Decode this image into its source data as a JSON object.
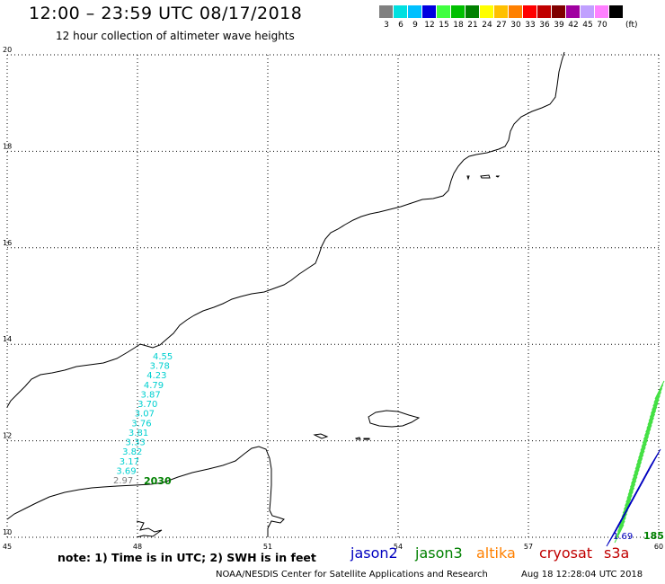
{
  "header": {
    "title": "12:00 – 23:59 UTC 08/17/2018",
    "subtitle": "12 hour collection of altimeter wave heights"
  },
  "colorbar": {
    "unit": "(ft)",
    "bins": [
      {
        "label": "3",
        "color": "#808080"
      },
      {
        "label": "6",
        "color": "#00e0e0"
      },
      {
        "label": "9",
        "color": "#00c0ff"
      },
      {
        "label": "12",
        "color": "#0000e0"
      },
      {
        "label": "15",
        "color": "#40ff40"
      },
      {
        "label": "18",
        "color": "#00c000"
      },
      {
        "label": "21",
        "color": "#008000"
      },
      {
        "label": "24",
        "color": "#ffff00"
      },
      {
        "label": "27",
        "color": "#ffc000"
      },
      {
        "label": "30",
        "color": "#ff8000"
      },
      {
        "label": "33",
        "color": "#ff0000"
      },
      {
        "label": "36",
        "color": "#c00000"
      },
      {
        "label": "39",
        "color": "#800000"
      },
      {
        "label": "42",
        "color": "#a000a0"
      },
      {
        "label": "45",
        "color": "#c0a0ff"
      },
      {
        "label": "70",
        "color": "#ff80ff"
      },
      {
        "label": "",
        "color": "#000000"
      }
    ]
  },
  "axes": {
    "lon_ticks": [
      "45",
      "48",
      "51",
      "54",
      "57",
      "60"
    ],
    "lat_ticks": [
      "20",
      "18",
      "16",
      "14",
      "12",
      "10"
    ]
  },
  "tracks": {
    "cyan_track": {
      "values": [
        "4.55",
        "3.78",
        "4.23",
        "4.79",
        "3.87",
        "3.70",
        "3.07",
        "3.76",
        "3.81",
        "3.33",
        "3.82",
        "3.17",
        "3.69",
        "2.97"
      ],
      "color": "#00d0d0",
      "last_color": "#808080"
    },
    "green_time": "2030",
    "green_time_color": "#008000",
    "east_time": "185",
    "east_partial_label": "1.69"
  },
  "footer": {
    "note": "note: 1) Time is in UTC; 2) SWH is in feet",
    "satellites": [
      {
        "name": "jason2",
        "color": "#0000c0"
      },
      {
        "name": "jason3",
        "color": "#008000"
      },
      {
        "name": "altika",
        "color": "#ff8000"
      },
      {
        "name": "cryosat",
        "color": "#c00000"
      },
      {
        "name": "s3a",
        "color": "#c00000"
      }
    ],
    "credit": "NOAA/NESDIS Center for Satellite Applications and Research",
    "timestamp": "Aug 18 12:28:04 UTC 2018"
  }
}
